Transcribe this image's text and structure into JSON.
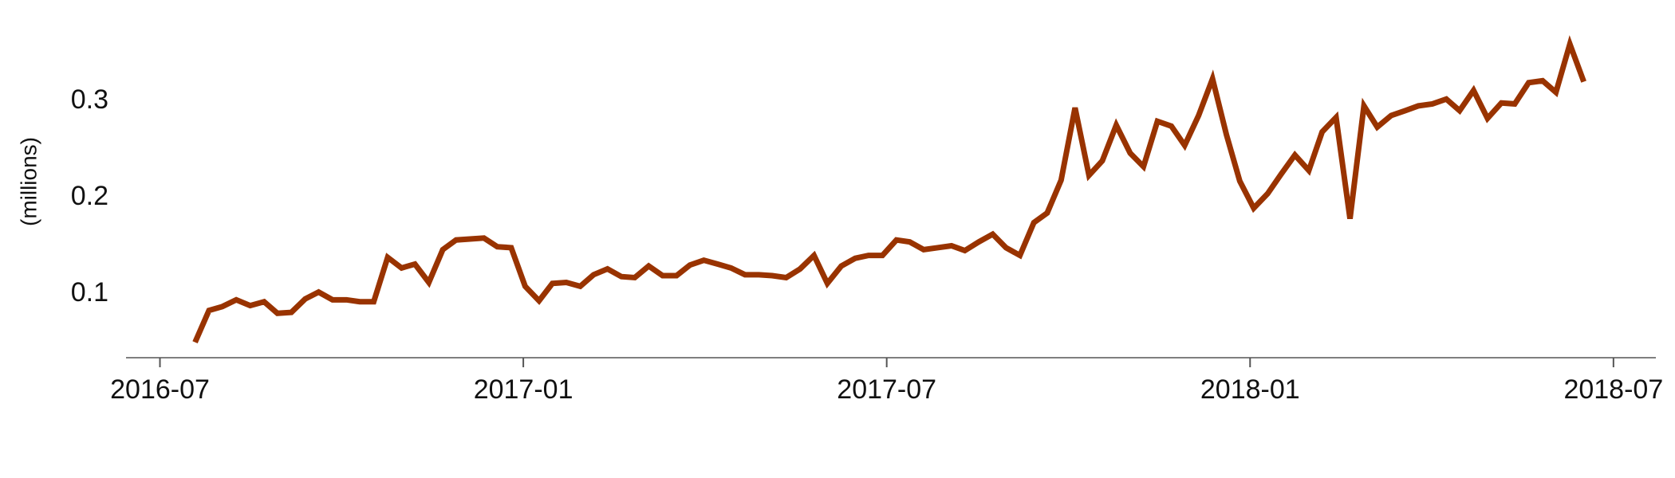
{
  "chart_data": {
    "type": "line",
    "y_label": "(millions)",
    "x": [
      0.58,
      0.81,
      1.03,
      1.26,
      1.49,
      1.72,
      1.94,
      2.17,
      2.4,
      2.62,
      2.85,
      3.08,
      3.3,
      3.53,
      3.76,
      3.99,
      4.21,
      4.44,
      4.67,
      4.89,
      5.12,
      5.35,
      5.57,
      5.8,
      6.03,
      6.26,
      6.48,
      6.71,
      6.94,
      7.16,
      7.39,
      7.62,
      7.84,
      8.07,
      8.3,
      8.53,
      8.75,
      8.98,
      9.21,
      9.43,
      9.66,
      9.89,
      10.11,
      10.34,
      10.57,
      10.8,
      11.02,
      11.25,
      11.48,
      11.7,
      11.93,
      12.16,
      12.38,
      12.61,
      12.84,
      13.07,
      13.29,
      13.52,
      13.75,
      13.97,
      14.2,
      14.43,
      14.65,
      14.88,
      15.11,
      15.34,
      15.56,
      15.79,
      16.02,
      16.24,
      16.47,
      16.7,
      16.92,
      17.15,
      17.38,
      17.61,
      17.83,
      18.06,
      18.29,
      18.51,
      18.74,
      18.97,
      19.19,
      19.42,
      19.65,
      19.88,
      20.1,
      20.33,
      20.56,
      20.78,
      21.01,
      21.24,
      21.46,
      21.69,
      21.92,
      22.15,
      22.37,
      22.6,
      22.83,
      23.05,
      23.28,
      23.51
    ],
    "series": [
      {
        "color": "#993300",
        "values": [
          0.05,
          0.083,
          0.087,
          0.094,
          0.088,
          0.092,
          0.08,
          0.081,
          0.095,
          0.102,
          0.094,
          0.094,
          0.092,
          0.092,
          0.138,
          0.127,
          0.131,
          0.112,
          0.146,
          0.156,
          0.157,
          0.158,
          0.149,
          0.148,
          0.108,
          0.093,
          0.111,
          0.112,
          0.108,
          0.12,
          0.126,
          0.118,
          0.117,
          0.129,
          0.119,
          0.119,
          0.13,
          0.135,
          0.131,
          0.127,
          0.12,
          0.12,
          0.119,
          0.117,
          0.126,
          0.14,
          0.111,
          0.129,
          0.137,
          0.14,
          0.14,
          0.156,
          0.154,
          0.146,
          0.148,
          0.15,
          0.145,
          0.154,
          0.162,
          0.148,
          0.14,
          0.174,
          0.184,
          0.218,
          0.293,
          0.223,
          0.238,
          0.275,
          0.246,
          0.232,
          0.279,
          0.274,
          0.254,
          0.285,
          0.323,
          0.265,
          0.217,
          0.189,
          0.204,
          0.224,
          0.244,
          0.228,
          0.268,
          0.283,
          0.178,
          0.295,
          0.273,
          0.285,
          0.29,
          0.295,
          0.297,
          0.302,
          0.29,
          0.311,
          0.282,
          0.298,
          0.297,
          0.319,
          0.321,
          0.309,
          0.359,
          0.32
        ]
      }
    ],
    "xlim": [
      -0.56,
      24.7
    ],
    "xticks": [
      {
        "value": 0,
        "label": "2016-07"
      },
      {
        "value": 6,
        "label": "2017-01"
      },
      {
        "value": 12,
        "label": "2017-07"
      },
      {
        "value": 18,
        "label": "2018-01"
      },
      {
        "value": 24,
        "label": "2018-07"
      }
    ],
    "ylim": [
      0.034,
      0.37
    ],
    "yticks": [
      0.1,
      0.2,
      0.3
    ],
    "grid": false
  }
}
